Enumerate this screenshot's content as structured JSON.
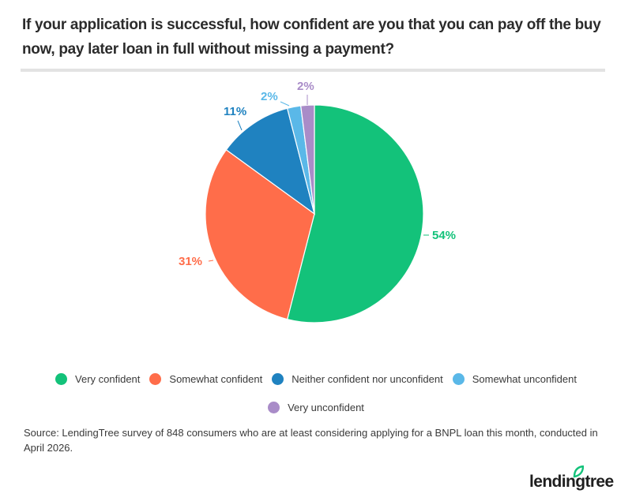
{
  "header": {
    "title": "If your application is successful, how confident are you that you can pay off the buy now, pay later loan in full without missing a payment?"
  },
  "chart_data": {
    "type": "pie",
    "title": "If your application is successful, how confident are you that you can pay off the buy now, pay later loan in full without missing a payment?",
    "categories": [
      "Very confident",
      "Somewhat confident",
      "Neither confident nor unconfident",
      "Somewhat unconfident",
      "Very unconfident"
    ],
    "values": [
      54,
      31,
      11,
      2,
      2
    ],
    "labels": [
      "54%",
      "31%",
      "11%",
      "2%",
      "2%"
    ],
    "colors": [
      "#13c27a",
      "#ff6d4a",
      "#1f82c0",
      "#5ab8e8",
      "#a98cc8"
    ],
    "start_angle": "12 o'clock, clockwise",
    "legend_position": "bottom"
  },
  "legend": {
    "items": [
      {
        "label": "Very confident",
        "color": "#13c27a"
      },
      {
        "label": "Somewhat confident",
        "color": "#ff6d4a"
      },
      {
        "label": "Neither confident nor unconfident",
        "color": "#1f82c0"
      },
      {
        "label": "Somewhat unconfident",
        "color": "#5ab8e8"
      },
      {
        "label": "Very unconfident",
        "color": "#a98cc8"
      }
    ]
  },
  "footer": {
    "source": "Source: LendingTree survey of 848 consumers who are at least considering applying for a BNPL loan this month, conducted in April 2026.",
    "logo_text": "lendingtree",
    "logo_color": "#13c27a"
  }
}
